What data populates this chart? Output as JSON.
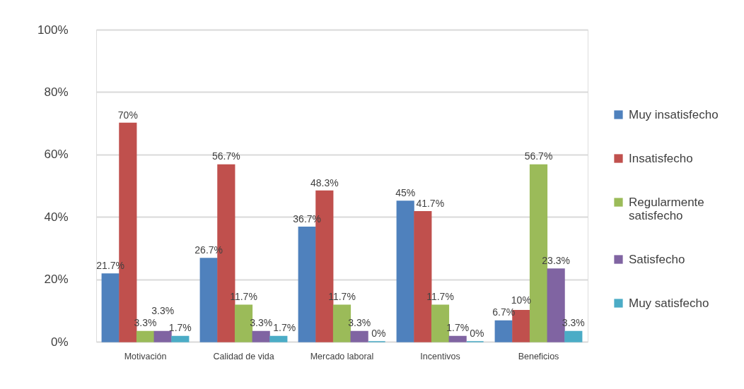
{
  "chart_data": {
    "type": "bar",
    "categories": [
      "Motivación",
      "Calidad de vida",
      "Mercado laboral",
      "Incentivos",
      "Beneficios"
    ],
    "series": [
      {
        "name": "Muy insatisfecho",
        "color": "#4f81bd",
        "values": [
          21.7,
          26.7,
          36.7,
          45,
          6.7
        ],
        "value_labels": [
          "21.7%",
          "26.7%",
          "36.7%",
          "45%",
          "6.7%"
        ]
      },
      {
        "name": "Insatisfecho",
        "color": "#c0504d",
        "values": [
          70,
          56.7,
          48.3,
          41.7,
          10
        ],
        "value_labels": [
          "70%",
          "56.7%",
          "48.3%",
          "41.7%",
          "10%"
        ]
      },
      {
        "name": "Regularmente satisfecho",
        "color": "#9bbb59",
        "values": [
          3.3,
          11.7,
          11.7,
          11.7,
          56.7
        ],
        "value_labels": [
          "3.3%",
          "11.7%",
          "11.7%",
          "11.7%",
          "56.7%"
        ]
      },
      {
        "name": "Satisfecho",
        "color": "#8064a2",
        "values": [
          3.3,
          3.3,
          3.3,
          1.7,
          23.3
        ],
        "value_labels": [
          "3.3%",
          "3.3%",
          "3.3%",
          "1.7%",
          "23.3%"
        ]
      },
      {
        "name": "Muy satisfecho",
        "color": "#4bacc6",
        "values": [
          1.7,
          1.7,
          0,
          0,
          3.3
        ],
        "value_labels": [
          "1.7%",
          "1.7%",
          "0%",
          "0%",
          "3.3%"
        ]
      }
    ],
    "ylim": [
      0,
      100
    ],
    "yticks": [
      {
        "value": 0,
        "label": "0%"
      },
      {
        "value": 20,
        "label": "20%"
      },
      {
        "value": 40,
        "label": "40%"
      },
      {
        "value": 60,
        "label": "60%"
      },
      {
        "value": 80,
        "label": "80%"
      },
      {
        "value": 100,
        "label": "100%"
      }
    ],
    "grid": "y",
    "legend": "right"
  }
}
